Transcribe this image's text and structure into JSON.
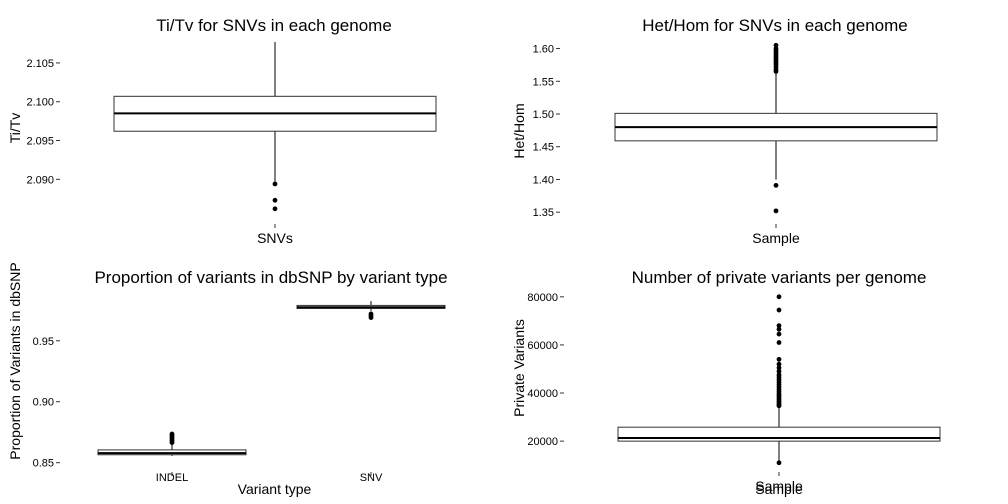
{
  "chart_data": [
    {
      "id": "titv",
      "type": "box",
      "title": "Ti/Tv for SNVs in each genome",
      "xlabel": "",
      "ylabel": "Ti/Tv",
      "ylim": [
        2.0845,
        2.1077
      ],
      "yticks": [
        2.09,
        2.095,
        2.1,
        2.105
      ],
      "ytick_labels": [
        "2.090",
        "2.095",
        "2.100",
        "2.105"
      ],
      "categories": [
        "SNVs"
      ],
      "boxes": [
        {
          "category": "SNVs",
          "q1": 2.0962,
          "median": 2.0985,
          "q3": 2.1007,
          "whisker_low": 2.0895,
          "whisker_high": 2.1077,
          "outliers": [
            2.0894,
            2.0873,
            2.0862
          ]
        }
      ]
    },
    {
      "id": "hethom",
      "type": "box",
      "title": "Het/Hom for SNVs in each genome",
      "xlabel": "",
      "ylabel": "Het/Hom",
      "ylim": [
        1.335,
        1.61
      ],
      "yticks": [
        1.35,
        1.4,
        1.45,
        1.5,
        1.55,
        1.6
      ],
      "ytick_labels": [
        "1.35",
        "1.40",
        "1.45",
        "1.50",
        "1.55",
        "1.60"
      ],
      "categories": [
        "Sample"
      ],
      "boxes": [
        {
          "category": "Sample",
          "q1": 1.459,
          "median": 1.48,
          "q3": 1.501,
          "whisker_low": 1.4,
          "whisker_high": 1.562,
          "outliers": [
            1.605,
            1.6,
            1.597,
            1.594,
            1.591,
            1.588,
            1.585,
            1.582,
            1.579,
            1.576,
            1.572,
            1.568,
            1.565,
            1.391,
            1.352
          ]
        }
      ]
    },
    {
      "id": "dbsnp",
      "type": "box",
      "title": "Proportion of variants in dbSNP by variant type",
      "xlabel": "Variant type",
      "ylabel": "Proportion of Variants in dbSNP",
      "ylim": [
        0.844,
        0.99
      ],
      "yticks": [
        0.85,
        0.9,
        0.95
      ],
      "ytick_labels": [
        "0.85",
        "0.90",
        "0.95"
      ],
      "categories": [
        "INDEL",
        "SNV"
      ],
      "boxes": [
        {
          "category": "INDEL",
          "q1": 0.8565,
          "median": 0.8578,
          "q3": 0.8605,
          "whisker_low": 0.8555,
          "whisker_high": 0.865,
          "outliers": [
            0.8665,
            0.868,
            0.8695,
            0.871,
            0.8725,
            0.8735
          ]
        },
        {
          "category": "SNV",
          "q1": 0.9765,
          "median": 0.9775,
          "q3": 0.979,
          "whisker_low": 0.9745,
          "whisker_high": 0.9825,
          "outliers": [
            0.972,
            0.9705,
            0.969
          ]
        }
      ]
    },
    {
      "id": "private",
      "type": "box",
      "title": "Number of private variants per genome",
      "xlabel": "Sample",
      "ylabel": "Private Variants",
      "ylim": [
        8000,
        82000
      ],
      "yticks": [
        20000,
        40000,
        60000,
        80000
      ],
      "ytick_labels": [
        "20000",
        "40000",
        "60000",
        "80000"
      ],
      "categories": [
        "Sample"
      ],
      "boxes": [
        {
          "category": "Sample",
          "q1": 20000,
          "median": 21300,
          "q3": 25800,
          "whisker_low": 11500,
          "whisker_high": 34300,
          "outliers": [
            80000,
            74500,
            68000,
            66500,
            64500,
            61000,
            54000,
            52000,
            50500,
            49000,
            47500,
            46500,
            45500,
            44500,
            43500,
            42500,
            41500,
            40500,
            39500,
            38800,
            38000,
            37200,
            36400,
            35600,
            35000,
            34700,
            11000
          ]
        }
      ]
    }
  ]
}
